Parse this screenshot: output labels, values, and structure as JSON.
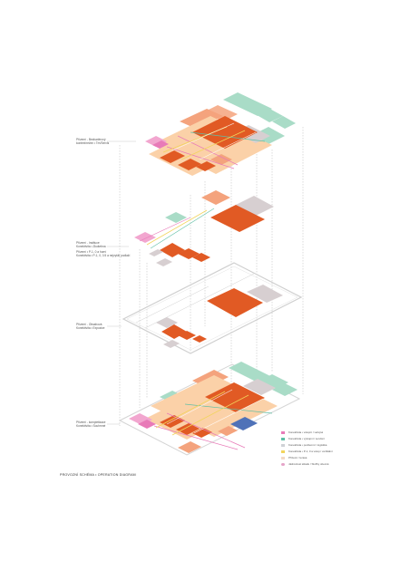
{
  "layers": [
    {
      "label_line1": "Přízemí - Bezbariérový",
      "label_line2": "kontext/režim • Trh/Servis"
    },
    {
      "label_line1": "Přízemí - Instituce",
      "label_line2": "Konektivita • Zkušebna",
      "label_line3": "Přízemí • P-1, 0 a horní",
      "label_line4": "Konektivita • P-1, 0, 0.5 a nejvyšší podlaží"
    },
    {
      "label_line1": "Přízemí - Obsahová",
      "label_line2": "Konektivita • Expozice"
    },
    {
      "label_line1": "Přízemí - kompletizace",
      "label_line2": "Konektivita • Souhrnné"
    }
  ],
  "legend": [
    {
      "text": "Konektivita • vstupní / veřejná",
      "color": "#e87ab8"
    },
    {
      "text": "Konektivita • výstupní / servisní",
      "color": "#5fbfa6"
    },
    {
      "text": "Konektivita • podzemní / logistika",
      "color": "#cfd2d6"
    },
    {
      "text": "Konektivita • P-1, 0 a vstup / vertikální",
      "color": "#f2d45c"
    },
    {
      "text": "Přízemí / terasa",
      "color": "#f3d9c6"
    },
    {
      "text": "Jádrovitost skladu / Služby obecně",
      "color": "#e5a3c8"
    }
  ],
  "caption": "PROVOZNÍ SCHÉMA • OPERATION DIAGRAM",
  "colors": {
    "orange": "#e15a24",
    "salmon": "#f4a37d",
    "peach": "#fbd1a8",
    "mint": "#a9dcc7",
    "pink": "#f2a6cf",
    "grey": "#d7cfd1",
    "blue": "#4f72b8"
  }
}
